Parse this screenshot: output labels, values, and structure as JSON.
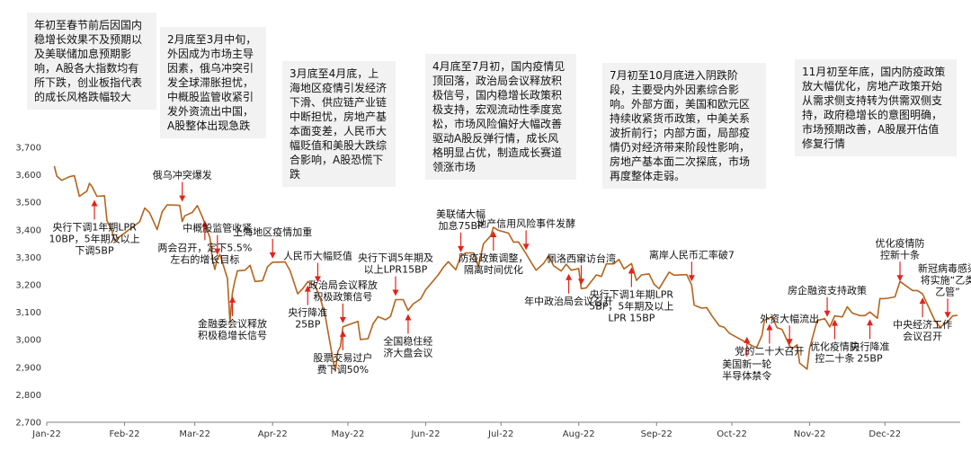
{
  "chart_data": {
    "type": "line",
    "title": "",
    "xlabel": "",
    "ylabel": "",
    "ylim": [
      2700,
      3700
    ],
    "yticks": [
      "3,700",
      "3,600",
      "3,500",
      "3,400",
      "3,300",
      "3,200",
      "3,100",
      "3,000",
      "2,900",
      "2,800",
      "2,700"
    ],
    "ytick_values": [
      3700,
      3600,
      3500,
      3400,
      3300,
      3200,
      3100,
      3000,
      2900,
      2800,
      2700
    ],
    "xticks": [
      "Jan-22",
      "Feb-22",
      "Mar-22",
      "Apr-22",
      "May-22",
      "Jun-22",
      "Jul-22",
      "Aug-22",
      "Sep-22",
      "Oct-22",
      "Nov-22",
      "Dec-22"
    ],
    "xtick_dates": [
      "2022-01-01",
      "2022-02-01",
      "2022-03-01",
      "2022-04-01",
      "2022-05-01",
      "2022-06-01",
      "2022-07-01",
      "2022-08-01",
      "2022-09-01",
      "2022-10-01",
      "2022-11-01",
      "2022-12-01"
    ],
    "x_range": [
      "2022-01-01",
      "2022-12-31"
    ],
    "grid": false,
    "line_color": "#b4641e",
    "arrow_color": "#e2231a",
    "series": [
      {
        "x": [
          "2022-01-04",
          "2022-01-05",
          "2022-01-07",
          "2022-01-10",
          "2022-01-12",
          "2022-01-14",
          "2022-01-17",
          "2022-01-18",
          "2022-01-19",
          "2022-01-21",
          "2022-01-24",
          "2022-01-25",
          "2022-01-27",
          "2022-01-28",
          "2022-02-07",
          "2022-02-09",
          "2022-02-11",
          "2022-02-14",
          "2022-02-16",
          "2022-02-18",
          "2022-02-21",
          "2022-02-23",
          "2022-02-24",
          "2022-02-25",
          "2022-02-28",
          "2022-03-02",
          "2022-03-04",
          "2022-03-07",
          "2022-03-08",
          "2022-03-09",
          "2022-03-10",
          "2022-03-11",
          "2022-03-14",
          "2022-03-15",
          "2022-03-16",
          "2022-03-17",
          "2022-03-18",
          "2022-03-21",
          "2022-03-23",
          "2022-03-25",
          "2022-03-28",
          "2022-03-30",
          "2022-04-01",
          "2022-04-06",
          "2022-04-08",
          "2022-04-11",
          "2022-04-13",
          "2022-04-15",
          "2022-04-18",
          "2022-04-20",
          "2022-04-22",
          "2022-04-25",
          "2022-04-26",
          "2022-04-27",
          "2022-04-28",
          "2022-04-29",
          "2022-05-05",
          "2022-05-06",
          "2022-05-09",
          "2022-05-11",
          "2022-05-13",
          "2022-05-16",
          "2022-05-18",
          "2022-05-20",
          "2022-05-23",
          "2022-05-25",
          "2022-05-27",
          "2022-05-30",
          "2022-06-01",
          "2022-06-06",
          "2022-06-08",
          "2022-06-10",
          "2022-06-13",
          "2022-06-15",
          "2022-06-17",
          "2022-06-20",
          "2022-06-22",
          "2022-06-24",
          "2022-06-27",
          "2022-06-28",
          "2022-06-30",
          "2022-07-04",
          "2022-07-06",
          "2022-07-08",
          "2022-07-11",
          "2022-07-13",
          "2022-07-15",
          "2022-07-18",
          "2022-07-20",
          "2022-07-22",
          "2022-07-25",
          "2022-07-27",
          "2022-07-29",
          "2022-08-01",
          "2022-08-02",
          "2022-08-04",
          "2022-08-08",
          "2022-08-10",
          "2022-08-12",
          "2022-08-15",
          "2022-08-17",
          "2022-08-19",
          "2022-08-22",
          "2022-08-24",
          "2022-08-26",
          "2022-08-29",
          "2022-08-31",
          "2022-09-02",
          "2022-09-06",
          "2022-09-08",
          "2022-09-13",
          "2022-09-15",
          "2022-09-16",
          "2022-09-19",
          "2022-09-21",
          "2022-09-23",
          "2022-09-26",
          "2022-09-28",
          "2022-09-30",
          "2022-10-10",
          "2022-10-11",
          "2022-10-13",
          "2022-10-14",
          "2022-10-17",
          "2022-10-19",
          "2022-10-21",
          "2022-10-24",
          "2022-10-25",
          "2022-10-27",
          "2022-10-28",
          "2022-10-31",
          "2022-11-01",
          "2022-11-02",
          "2022-11-04",
          "2022-11-07",
          "2022-11-09",
          "2022-11-11",
          "2022-11-14",
          "2022-11-16",
          "2022-11-18",
          "2022-11-21",
          "2022-11-23",
          "2022-11-25",
          "2022-11-28",
          "2022-11-29",
          "2022-11-30",
          "2022-12-02",
          "2022-12-05",
          "2022-12-07",
          "2022-12-09",
          "2022-12-12",
          "2022-12-14",
          "2022-12-16",
          "2022-12-19",
          "2022-12-21",
          "2022-12-23",
          "2022-12-26",
          "2022-12-28",
          "2022-12-30"
        ],
        "values": [
          3632,
          3595,
          3580,
          3593,
          3597,
          3522,
          3541,
          3569,
          3558,
          3522,
          3524,
          3433,
          3395,
          3361,
          3429,
          3479,
          3462,
          3401,
          3466,
          3491,
          3490,
          3489,
          3430,
          3451,
          3463,
          3488,
          3447,
          3372,
          3293,
          3256,
          3296,
          3310,
          3223,
          3064,
          3171,
          3215,
          3251,
          3253,
          3271,
          3212,
          3215,
          3266,
          3282,
          3283,
          3251,
          3167,
          3186,
          3211,
          3195,
          3151,
          3087,
          2929,
          2886,
          2958,
          2975,
          3047,
          3067,
          3001,
          3004,
          3058,
          3084,
          3073,
          3085,
          3146,
          3146,
          3107,
          3130,
          3149,
          3182,
          3236,
          3263,
          3284,
          3255,
          3305,
          3316,
          3316,
          3267,
          3349,
          3379,
          3409,
          3398,
          3388,
          3355,
          3356,
          3313,
          3282,
          3253,
          3278,
          3305,
          3269,
          3250,
          3275,
          3253,
          3259,
          3186,
          3189,
          3236,
          3230,
          3276,
          3276,
          3292,
          3258,
          3277,
          3216,
          3236,
          3240,
          3202,
          3186,
          3246,
          3235,
          3237,
          3199,
          3126,
          3115,
          3117,
          3088,
          3051,
          3045,
          3024,
          2974,
          2974,
          3016,
          3071,
          3084,
          3044,
          3038,
          2978,
          2967,
          2982,
          2915,
          2893,
          2969,
          3003,
          3070,
          3077,
          3047,
          3087,
          3083,
          3120,
          3097,
          3088,
          3088,
          3101,
          3078,
          3150,
          3149,
          3151,
          3156,
          3212,
          3199,
          3179,
          3179,
          3167,
          3107,
          3068,
          3046,
          3065,
          3087,
          3089
        ]
      }
    ],
    "annotations": [
      {
        "text": "央行下调1年期LPR\n10BP，5年期及以上\n下调5BP",
        "date": "2022-01-20",
        "value": 3522,
        "side": "below"
      },
      {
        "text": "俄乌冲突爆发",
        "date": "2022-02-24",
        "value": 3489,
        "side": "above"
      },
      {
        "text": "两会召开，定下5.5%\n左右的增长目标",
        "date": "2022-03-05",
        "value": 3447,
        "side": "below"
      },
      {
        "text": "中概股监管收紧",
        "date": "2022-03-10",
        "value": 3296,
        "side": "above"
      },
      {
        "text": "金融委会议释放\n积极稳增长信号",
        "date": "2022-03-16",
        "value": 3171,
        "side": "below"
      },
      {
        "text": "上海地区疫情加重",
        "date": "2022-04-01",
        "value": 3282,
        "side": "above"
      },
      {
        "text": "人民币大幅贬值",
        "date": "2022-04-19",
        "value": 3195,
        "side": "above"
      },
      {
        "text": "央行降准\n25BP",
        "date": "2022-04-15",
        "value": 3211,
        "side": "below"
      },
      {
        "text": "政治局会议释放\n积极政策信号",
        "date": "2022-04-29",
        "value": 3047,
        "side": "above"
      },
      {
        "text": "股票交易过户\n费下调50%",
        "date": "2022-04-29",
        "value": 3047,
        "side": "below"
      },
      {
        "text": "央行下调5年期及\n以上LPR15BP",
        "date": "2022-05-20",
        "value": 3146,
        "side": "above"
      },
      {
        "text": "全国稳住经\n济大盘会议",
        "date": "2022-05-25",
        "value": 3107,
        "side": "below"
      },
      {
        "text": "美联储大幅\n加息75BP",
        "date": "2022-06-15",
        "value": 3305,
        "side": "above"
      },
      {
        "text": "防疫政策调整，\n隔离时间优化",
        "date": "2022-06-28",
        "value": 3409,
        "side": "below"
      },
      {
        "text": "地产信用风险事件发酵",
        "date": "2022-07-11",
        "value": 3313,
        "side": "above"
      },
      {
        "text": "佩洛西窜访台湾",
        "date": "2022-08-02",
        "value": 3186,
        "side": "above"
      },
      {
        "text": "年中政治局会议召开",
        "date": "2022-07-28",
        "value": 3253,
        "side": "below"
      },
      {
        "text": "央行下调1年期LPR\n5BP，5年期及以上\nLPR 15BP",
        "date": "2022-08-22",
        "value": 3277,
        "side": "below"
      },
      {
        "text": "离岸人民币汇率破7",
        "date": "2022-09-15",
        "value": 3199,
        "side": "above"
      },
      {
        "text": "美国新一轮\n半导体禁令",
        "date": "2022-10-07",
        "value": 3024,
        "side": "below"
      },
      {
        "text": "党的二十大召开",
        "date": "2022-10-16",
        "value": 3071,
        "side": "below"
      },
      {
        "text": "外资大幅流出",
        "date": "2022-10-24",
        "value": 2967,
        "side": "above"
      },
      {
        "text": "房企融资支持政策",
        "date": "2022-11-08",
        "value": 3070,
        "side": "above"
      },
      {
        "text": "优化疫情防\n控新十条",
        "date": "2022-12-07",
        "value": 3199,
        "side": "above"
      },
      {
        "text": "优化疫情防\n控二十条",
        "date": "2022-11-11",
        "value": 3087,
        "side": "below"
      },
      {
        "text": "央行降准\n25BP",
        "date": "2022-11-25",
        "value": 3088,
        "side": "below"
      },
      {
        "text": "新冠病毒感染\n将实施“乙类\n乙管”",
        "date": "2022-12-26",
        "value": 3065,
        "side": "above"
      },
      {
        "text": "中央经济工作\n会议召开",
        "date": "2022-12-16",
        "value": 3167,
        "side": "below"
      }
    ]
  },
  "phase_notes": [
    "年初至春节前后因国内稳增长效果不及预期以及美联储加息预期影响，A股各大指数均有所下跌，创业板指代表的成长风格跌幅较大",
    "2月底至3月中旬，外因成为市场主导因素，俄乌冲突引发全球滞胀担忧，中概股监管收紧引发外资流出中国，A股整体出现急跌",
    "3月底至4月底，上海地区疫情引发经济下滑、供应链产业链中断担忧，房地产基本面变差，人民币大幅贬值和美股大跌综合影响，A股恐慌下跌",
    "4月底至7月初，国内疫情见顶回落，政治局会议释放积极信号，国内稳增长政策积极支持，宏观流动性季度宽松，市场风险偏好大幅改善驱动A股反弹行情，成长风格明显占优，制造成长赛道领涨市场",
    "7月初至10月底进入阴跌阶段，主要受内外因素综合影响。外部方面，美国和欧元区持续收紧货币政策，中美关系波折前行；内部方面，局部疫情仍对经济带来阶段性影响，房地产基本面二次探底，市场再度整体走弱。",
    "11月初至年底，国内防疫政策放大幅优化，房地产政策开始从需求侧支持转为供需双侧支持，政府稳增长的意图明确，市场预期改善，A股展开估值修复行情"
  ]
}
